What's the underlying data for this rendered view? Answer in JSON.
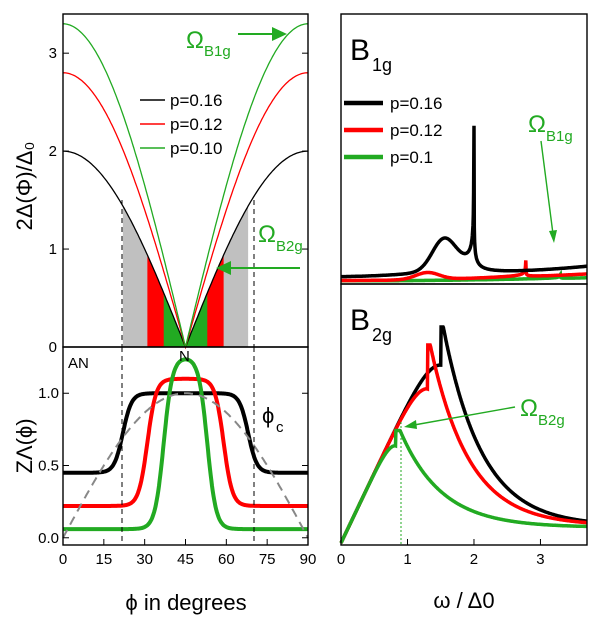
{
  "chart_data": [
    {
      "panel": "top-left",
      "type": "line",
      "ylabel": "2Δ(Φ)/Δ₀",
      "xlim": [
        0,
        90
      ],
      "ylim": [
        0,
        3.4
      ],
      "yticks": [
        "0",
        "1",
        "2",
        "3"
      ],
      "series": [
        {
          "name": "p=0.16",
          "color": "#000000",
          "amplitude": 2.0
        },
        {
          "name": "p=0.12",
          "color": "#ff0000",
          "amplitude": 2.8
        },
        {
          "name": "p=0.10",
          "color": "#22aa22",
          "amplitude": 3.3
        }
      ],
      "shaded_bands": [
        {
          "color": "#c0c0c0",
          "from": 22,
          "to": 68
        },
        {
          "color": "#ff0000",
          "from": 31,
          "to": 59
        },
        {
          "color": "#22aa22",
          "from": 37,
          "to": 53
        }
      ],
      "phi_c_lines": [
        22,
        68
      ],
      "annotations": {
        "omega_b1g": "Ω",
        "omega_b1g_sub": "B1g",
        "omega_b2g": "Ω",
        "omega_b2g_sub": "B2g",
        "node_label": "N",
        "antinode_label": "AN"
      }
    },
    {
      "panel": "bottom-left",
      "type": "line",
      "ylabel": "ZΛ(ϕ)",
      "xlabel": "ϕ in degrees",
      "xlim": [
        0,
        90
      ],
      "ylim": [
        -0.05,
        1.32
      ],
      "xticks": [
        "0",
        "15",
        "30",
        "45",
        "60",
        "75",
        "90"
      ],
      "yticks": [
        "0.0",
        "0.5",
        "1.0"
      ],
      "series": [
        {
          "name": "p=0.16",
          "color": "#000000",
          "low": 0.45,
          "high": 1.0,
          "edges": [
            22,
            68
          ]
        },
        {
          "name": "p=0.12",
          "color": "#ff0000",
          "low": 0.22,
          "high": 1.1,
          "edges": [
            31,
            59
          ]
        },
        {
          "name": "p=0.10",
          "color": "#22aa22",
          "low": 0.06,
          "high": 1.25,
          "edges": [
            37,
            53
          ]
        },
        {
          "name": "cos",
          "color": "#888888",
          "dashed": true
        }
      ],
      "annotations": {
        "phi_c": "ϕ",
        "phi_c_sub": "c"
      }
    },
    {
      "panel": "top-right",
      "type": "line",
      "title": "B",
      "title_sub": "1g",
      "xlim": [
        0,
        3.7
      ],
      "series": [
        {
          "name": "p=0.16",
          "color": "#000000",
          "peak_x": 2.0
        },
        {
          "name": "p=0.12",
          "color": "#ff0000",
          "peak_x": 2.78
        },
        {
          "name": "p=0.1",
          "color": "#22aa22",
          "peak_x": 3.3
        }
      ],
      "annotations": {
        "omega": "Ω",
        "omega_sub": "B1g"
      }
    },
    {
      "panel": "bottom-right",
      "type": "line",
      "title": "B",
      "title_sub": "2g",
      "xlabel": "ω / Δ0",
      "xlim": [
        0,
        3.7
      ],
      "xticks": [
        "0",
        "1",
        "2",
        "3"
      ],
      "series": [
        {
          "name": "p=0.16",
          "color": "#000000",
          "peak_x": 1.5
        },
        {
          "name": "p=0.12",
          "color": "#ff0000",
          "peak_x": 1.3
        },
        {
          "name": "p=0.1",
          "color": "#22aa22",
          "peak_x": 0.82
        }
      ],
      "annotations": {
        "omega": "Ω",
        "omega_sub": "B2g"
      }
    }
  ],
  "legend_left": [
    "p=0.16",
    "p=0.12",
    "p=0.10"
  ],
  "legend_right": [
    "p=0.16",
    "p=0.12",
    "p=0.1"
  ],
  "colors": {
    "black": "#000000",
    "red": "#ff0000",
    "green": "#22aa22",
    "gray": "#c0c0c0"
  }
}
